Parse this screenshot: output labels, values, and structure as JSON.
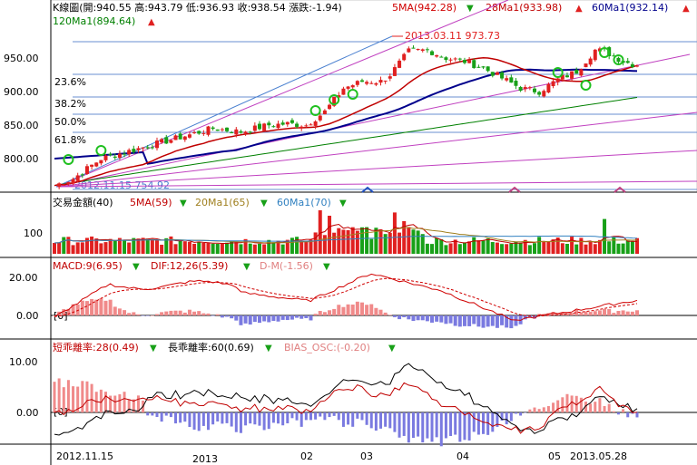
{
  "colors": {
    "up": "#e02020",
    "down": "#18a018",
    "ma5": "#d00000",
    "ma28": "#c00000",
    "ma60": "#00008c",
    "ma120": "#008000",
    "fib": "#6a8fd0",
    "fan": "#c040c0",
    "trend": "#4a80d0",
    "grid": "#000000",
    "macd_pos": "#f08a8a",
    "macd_neg": "#7a7ae0",
    "bias_dark": "#000000",
    "bias_red": "#c00000",
    "vol_ma5": "#c00000",
    "vol_ma20": "#a08020",
    "vol_ma60": "#3080c0"
  },
  "header": {
    "title": "K線圖(開:940.55 高:943.79 低:936.93 收:938.54 漲跌:-1.94)",
    "ma5": "5MA(942.28)",
    "ma28": "28Ma1(933.98)",
    "ma60": "60Ma1(932.14)",
    "ma120": "120Ma1(894.64)",
    "high_marker": "2013.03.11  973.73",
    "low_marker": "2012.11.15  754.92"
  },
  "volume_header": {
    "title": "交易金額(40)",
    "ma5": "5MA(59)",
    "ma20": "20Ma1(65)",
    "ma60": "60Ma1(70)"
  },
  "macd_header": {
    "title": "MACD:9(6.95)",
    "dif": "DIF:12,26(5.39)",
    "dm": "D-M(-1.56)",
    "zero_tag": "[0]"
  },
  "bias_header": {
    "short": "短乖離率:28(0.49)",
    "long": "長乖離率:60(0.69)",
    "osc": "BIAS_OSC:(-0.20)",
    "zero_tag": "[0]"
  },
  "price_ticks": [
    "950.00",
    "900.00",
    "850.00",
    "800.00"
  ],
  "fib_labels": [
    "23.6%",
    "38.2%",
    "50.0%",
    "61.8%"
  ],
  "volume_ticks": [
    "100"
  ],
  "macd_ticks": [
    "20.00",
    "0.00"
  ],
  "bias_ticks": [
    "10.00",
    "0.00"
  ],
  "x_ticks": [
    "2012.11.15",
    "2013",
    "02",
    "03",
    "04",
    "05",
    "2013.05.28"
  ],
  "chart_data": [
    {
      "type": "candlestick",
      "title": "K線圖",
      "ylim": [
        740,
        990
      ],
      "x_range": [
        "2012.11.15",
        "2013.05.28"
      ],
      "last_bar": {
        "open": 940.55,
        "high": 943.79,
        "low": 936.93,
        "close": 938.54,
        "change": -1.94
      },
      "series": [
        {
          "name": "5MA",
          "last": 942.28
        },
        {
          "name": "28Ma1",
          "last": 933.98
        },
        {
          "name": "60Ma1",
          "last": 932.14
        },
        {
          "name": "120Ma1",
          "last": 894.64
        }
      ],
      "annotations": [
        {
          "label": "2013.03.11 973.73",
          "date": "2013.03.11",
          "value": 973.73
        },
        {
          "label": "2012.11.15 754.92",
          "date": "2012.11.15",
          "value": 754.92
        }
      ],
      "fibonacci": [
        {
          "label": "23.6%",
          "value": 922.96
        },
        {
          "label": "38.2%",
          "value": 891.79
        },
        {
          "label": "50.0%",
          "value": 866.3
        },
        {
          "label": "61.8%",
          "value": 840.9
        }
      ]
    },
    {
      "type": "bar",
      "title": "交易金額(40)",
      "series": [
        {
          "name": "5MA",
          "last": 59
        },
        {
          "name": "20Ma1",
          "last": 65
        },
        {
          "name": "60Ma1",
          "last": 70
        }
      ]
    },
    {
      "type": "area",
      "title": "MACD:9(6.95)",
      "series": [
        {
          "name": "MACD:9",
          "last": 6.95
        },
        {
          "name": "DIF:12,26",
          "last": 5.39
        },
        {
          "name": "D-M",
          "last": -1.56
        }
      ]
    },
    {
      "type": "line",
      "title": "乖離率",
      "series": [
        {
          "name": "短乖離率:28",
          "last": 0.49
        },
        {
          "name": "長乖離率:60",
          "last": 0.69
        },
        {
          "name": "BIAS_OSC",
          "last": -0.2
        }
      ]
    }
  ]
}
